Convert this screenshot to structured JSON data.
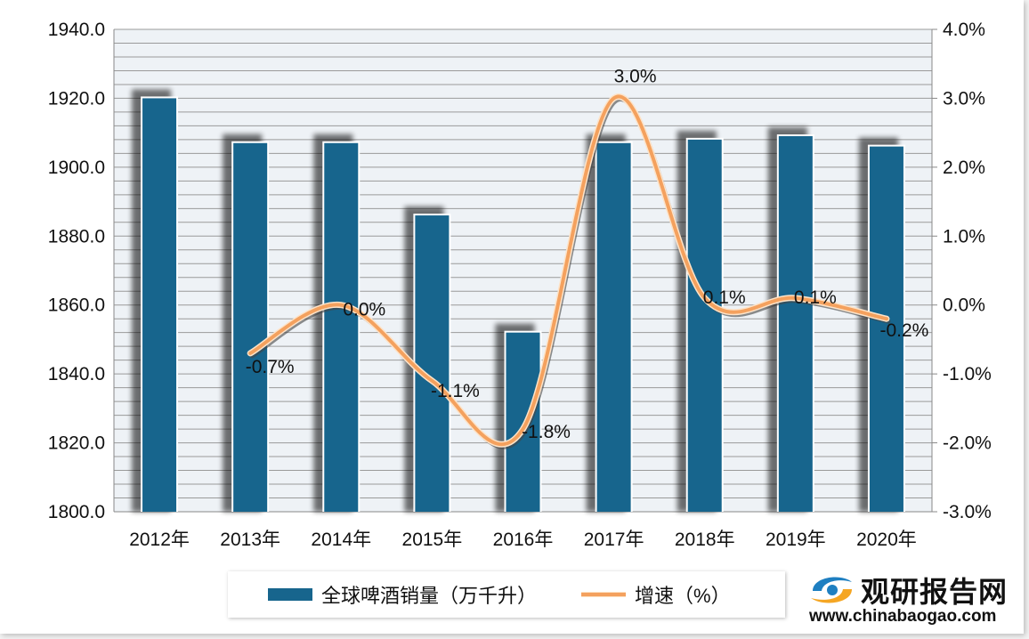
{
  "chart_data": {
    "type": "bar+line",
    "categories": [
      "2012年",
      "2013年",
      "2014年",
      "2015年",
      "2016年",
      "2017年",
      "2018年",
      "2019年",
      "2020年"
    ],
    "series": [
      {
        "name": "全球啤酒销量（万千升）",
        "type": "bar",
        "axis": "left",
        "color": "#17658d",
        "values": [
          1920,
          1907,
          1907,
          1886,
          1852,
          1907,
          1908,
          1909,
          1906
        ]
      },
      {
        "name": "增速（%）",
        "type": "line",
        "axis": "right",
        "color": "#f4a15e",
        "smooth": true,
        "values": [
          null,
          -0.7,
          0.0,
          -1.1,
          -1.8,
          3.0,
          0.1,
          0.1,
          -0.2
        ],
        "data_labels": [
          "",
          "-0.7%",
          "0.0%",
          "-1.1%",
          "-1.8%",
          "3.0%",
          "0.1%",
          "0.1%",
          "-0.2%"
        ]
      }
    ],
    "y_left": {
      "range": [
        1800,
        1940
      ],
      "ticks": [
        "1800.0",
        "1820.0",
        "1840.0",
        "1860.0",
        "1880.0",
        "1900.0",
        "1920.0",
        "1940.0"
      ]
    },
    "y_right": {
      "range": [
        -3.0,
        4.0
      ],
      "ticks": [
        "-3.0%",
        "-2.0%",
        "-1.0%",
        "0.0%",
        "1.0%",
        "2.0%",
        "3.0%",
        "4.0%"
      ]
    },
    "grid": true,
    "legend_position": "bottom"
  },
  "legend": {
    "bar_label": "全球啤酒销量（万千升）",
    "line_label": "增速（%）"
  },
  "watermark": {
    "name": "观研报告网",
    "url": "www.chinabaogao.com"
  }
}
